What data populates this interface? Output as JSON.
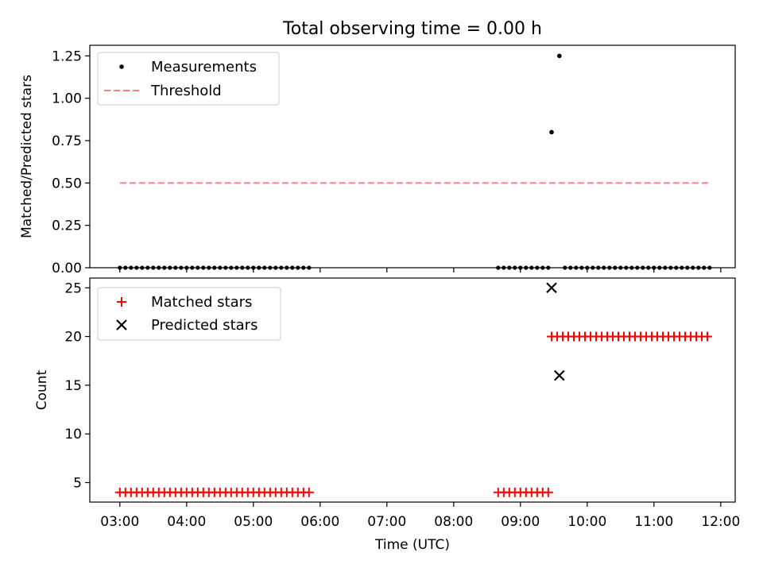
{
  "chart_data": [
    {
      "type": "scatter",
      "title": "Total observing time = 0.00 h",
      "xlabel": "",
      "ylabel": "Matched/Predicted stars",
      "xlim": [
        "02:33",
        "12:13"
      ],
      "ylim": [
        0,
        1.3125
      ],
      "yticks": [
        0.0,
        0.25,
        0.5,
        0.75,
        1.0,
        1.25
      ],
      "ytick_labels": [
        "0.00",
        "0.25",
        "0.50",
        "0.75",
        "1.00",
        "1.25"
      ],
      "legend": {
        "placement": "top-left",
        "entries": [
          "Measurements",
          "Threshold"
        ]
      },
      "series": [
        {
          "name": "Measurements",
          "marker": "dot",
          "color": "#000000",
          "segments": [
            {
              "start": "03:00",
              "end": "05:50",
              "step_min": 5,
              "y": 0
            },
            {
              "start": "08:40",
              "end": "09:25",
              "step_min": 5,
              "y": 0
            },
            {
              "start": "09:40",
              "end": "11:50",
              "step_min": 5,
              "y": 0
            }
          ],
          "points": [
            {
              "x": "09:28",
              "y": 0.8
            },
            {
              "x": "09:35",
              "y": 1.25
            }
          ]
        },
        {
          "name": "Threshold",
          "line": "dashed",
          "color": "#ff7f7f",
          "x": [
            "03:00",
            "11:50"
          ],
          "y": [
            0.5,
            0.5
          ]
        }
      ]
    },
    {
      "type": "scatter",
      "title": "",
      "xlabel": "Time (UTC)",
      "ylabel": "Count",
      "xlim": [
        "02:33",
        "12:13"
      ],
      "ylim": [
        3.0,
        26.0
      ],
      "yticks": [
        5,
        10,
        15,
        20,
        25
      ],
      "xticks": [
        "03:00",
        "04:00",
        "05:00",
        "06:00",
        "07:00",
        "08:00",
        "09:00",
        "10:00",
        "11:00",
        "12:00"
      ],
      "legend": {
        "placement": "top-left",
        "entries": [
          "Matched stars",
          "Predicted stars"
        ]
      },
      "series": [
        {
          "name": "Matched stars",
          "marker": "plus",
          "color": "#ff0000",
          "segments": [
            {
              "start": "03:00",
              "end": "05:50",
              "step_min": 5,
              "y": 4
            },
            {
              "start": "08:40",
              "end": "09:25",
              "step_min": 5,
              "y": 4
            },
            {
              "start": "09:28",
              "end": "11:50",
              "step_min": 5,
              "y": 20
            }
          ]
        },
        {
          "name": "Predicted stars",
          "marker": "x",
          "color": "#000000",
          "points": [
            {
              "x": "09:28",
              "y": 25
            },
            {
              "x": "09:35",
              "y": 16
            }
          ]
        }
      ]
    }
  ]
}
